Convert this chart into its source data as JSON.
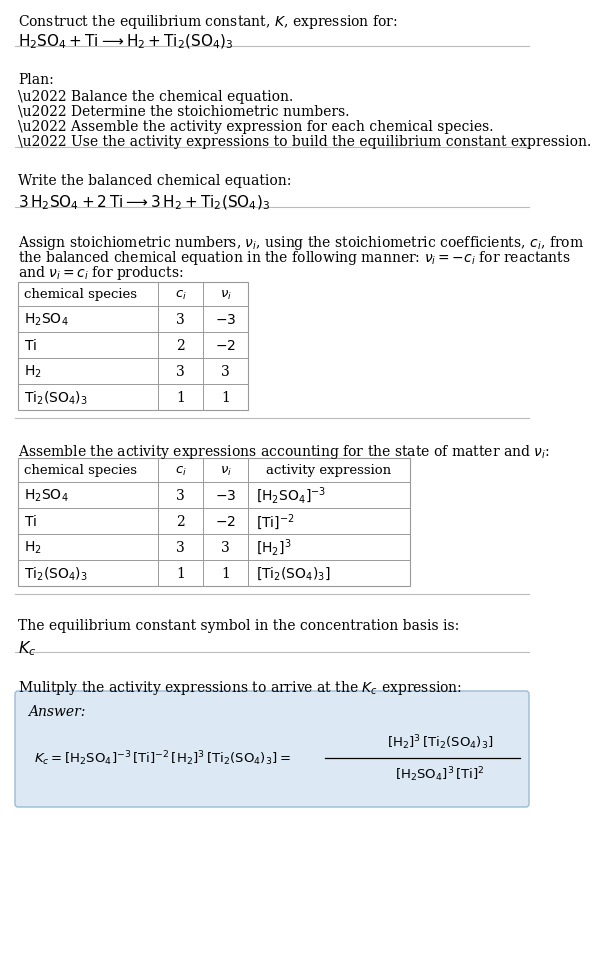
{
  "bg_color": "#ffffff",
  "text_color": "#000000",
  "title_line1": "Construct the equilibrium constant, $K$, expression for:",
  "title_line2": "$\\mathrm{H_2SO_4 + Ti \\longrightarrow H_2 + Ti_2(SO_4)_3}$",
  "plan_header": "Plan:",
  "plan_bullets": [
    "\\u2022 Balance the chemical equation.",
    "\\u2022 Determine the stoichiometric numbers.",
    "\\u2022 Assemble the activity expression for each chemical species.",
    "\\u2022 Use the activity expressions to build the equilibrium constant expression."
  ],
  "balanced_header": "Write the balanced chemical equation:",
  "balanced_eq": "$\\mathrm{3\\,H_2SO_4 + 2\\,Ti \\longrightarrow 3\\,H_2 + Ti_2(SO_4)_3}$",
  "stoich_header_lines": [
    "Assign stoichiometric numbers, $\\nu_i$, using the stoichiometric coefficients, $c_i$, from",
    "the balanced chemical equation in the following manner: $\\nu_i = -c_i$ for reactants",
    "and $\\nu_i = c_i$ for products:"
  ],
  "table1_cols": [
    "chemical species",
    "$c_i$",
    "$\\nu_i$"
  ],
  "table1_rows": [
    [
      "$\\mathrm{H_2SO_4}$",
      "3",
      "$-3$"
    ],
    [
      "$\\mathrm{Ti}$",
      "2",
      "$-2$"
    ],
    [
      "$\\mathrm{H_2}$",
      "3",
      "3"
    ],
    [
      "$\\mathrm{Ti_2(SO_4)_3}$",
      "1",
      "1"
    ]
  ],
  "activity_header": "Assemble the activity expressions accounting for the state of matter and $\\nu_i$:",
  "table2_cols": [
    "chemical species",
    "$c_i$",
    "$\\nu_i$",
    "activity expression"
  ],
  "table2_rows": [
    [
      "$\\mathrm{H_2SO_4}$",
      "3",
      "$-3$",
      "$[\\mathrm{H_2SO_4}]^{-3}$"
    ],
    [
      "$\\mathrm{Ti}$",
      "2",
      "$-2$",
      "$[\\mathrm{Ti}]^{-2}$"
    ],
    [
      "$\\mathrm{H_2}$",
      "3",
      "3",
      "$[\\mathrm{H_2}]^3$"
    ],
    [
      "$\\mathrm{Ti_2(SO_4)_3}$",
      "1",
      "1",
      "$[\\mathrm{Ti_2(SO_4)_3}]$"
    ]
  ],
  "kc_header": "The equilibrium constant symbol in the concentration basis is:",
  "kc_symbol": "$K_c$",
  "multiply_header": "Mulitply the activity expressions to arrive at the $K_c$ expression:",
  "answer_label": "Answer:",
  "answer_box_color": "#dce9f5",
  "answer_box_border": "#9bbbd4",
  "table_line_color": "#999999",
  "separator_color": "#bbbbbb",
  "font_size": 10.0,
  "eq_font_size": 11.0
}
